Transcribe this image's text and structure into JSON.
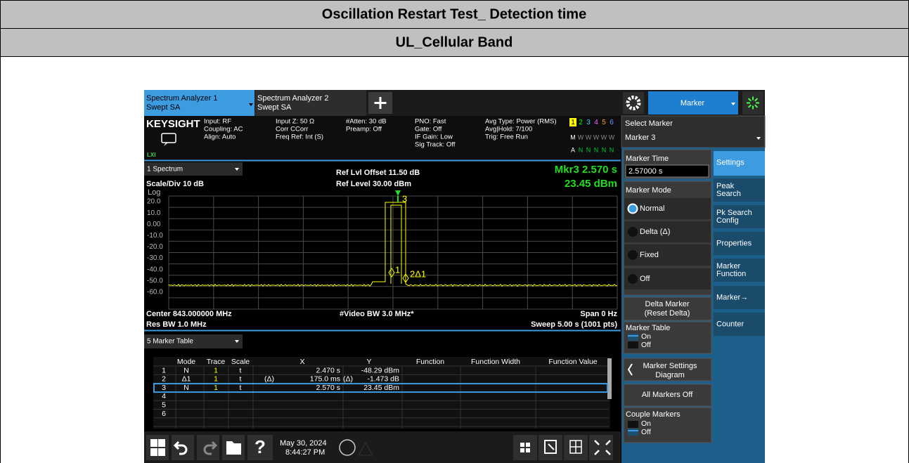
{
  "header": {
    "title": "Oscillation Restart Test_ Detection time",
    "subtitle": "UL_Cellular Band"
  },
  "screen": {
    "tabs": [
      {
        "line1": "Spectrum Analyzer 1",
        "line2": "Swept SA"
      },
      {
        "line1": "Spectrum Analyzer 2",
        "line2": "Swept SA"
      }
    ],
    "menu_title": "Marker",
    "brand": "KEYSIGHT",
    "lxi": "LXI",
    "settings": [
      [
        "Input: RF",
        "Coupling: AC",
        "Align: Auto"
      ],
      [
        "Input Z: 50 Ω",
        "Corr CCorr",
        "Freq Ref: Int (S)"
      ],
      [
        "#Atten: 30 dB",
        "Preamp: Off"
      ],
      [
        "PNO: Fast",
        "Gate: Off",
        "IF Gain: Low",
        "Sig Track: Off"
      ],
      [
        "Avg Type: Power (RMS)",
        "Avg|Hold: 7/100",
        "Trig: Free Run"
      ]
    ],
    "trace_status": {
      "numbers": [
        "1",
        "2",
        "3",
        "4",
        "5",
        "6"
      ],
      "type": [
        "M",
        "W",
        "W",
        "W",
        "W",
        "W"
      ],
      "detector": [
        "A",
        "N",
        "N",
        "N",
        "N",
        "N"
      ]
    },
    "spectrum": {
      "window": "1 Spectrum",
      "ref_offset": "Ref Lvl Offset 11.50 dB",
      "ref_level": "Ref Level 30.00 dBm",
      "scale": "Scale/Div 10 dB",
      "scale_type": "Log",
      "marker_readout": "Mkr3  2.570 s",
      "marker_value": "23.45 dBm",
      "y_labels": [
        "20.0",
        "10.0",
        "0.00",
        "-10.0",
        "-20.0",
        "-30.0",
        "-40.0",
        "-50.0",
        "-60.0"
      ],
      "markers": [
        "3",
        "1",
        "2Δ1"
      ],
      "center": "Center 843.000000 MHz",
      "video_bw": "#Video BW 3.0 MHz*",
      "span": "Span 0 Hz",
      "res_bw": "Res BW 1.0 MHz",
      "sweep": "Sweep 5.00 s (1001 pts)"
    },
    "marker_table": {
      "window": "5 Marker Table",
      "columns": [
        "Mode",
        "Trace",
        "Scale",
        "X",
        "Y",
        "Function",
        "Function Width",
        "Function Value"
      ],
      "rows": [
        {
          "index": "1",
          "mode": "N",
          "trace": "1",
          "scale": "t",
          "x": "2.470 s",
          "y": "-48.29 dBm"
        },
        {
          "index": "2",
          "mode": "Δ1",
          "trace": "1",
          "scale": "t",
          "x_ref": "(Δ)",
          "x": "175.0 ms",
          "y_ref": "(Δ)",
          "y": "-1.473 dB"
        },
        {
          "index": "3",
          "mode": "N",
          "trace": "1",
          "scale": "t",
          "x": "2.570 s",
          "y": "23.45 dBm"
        },
        {
          "index": "4"
        },
        {
          "index": "5"
        },
        {
          "index": "6"
        }
      ]
    },
    "panel": {
      "select_label": "Select Marker",
      "select_value": "Marker 3",
      "marker_time_label": "Marker Time",
      "marker_time_value": "2.57000 s",
      "marker_mode_label": "Marker Mode",
      "modes": [
        "Normal",
        "Delta (Δ)",
        "Fixed",
        "Off"
      ],
      "delta_button": [
        "Delta Marker",
        "(Reset Delta)"
      ],
      "marker_table_label": "Marker Table",
      "marker_table_options": [
        "On",
        "Off"
      ],
      "settings_button": [
        "Marker Settings",
        "Diagram"
      ],
      "all_off": "All Markers Off",
      "couple_label": "Couple Markers",
      "couple_options": [
        "On",
        "Off"
      ],
      "tabs": [
        [
          "Settings"
        ],
        [
          "Peak",
          "Search"
        ],
        [
          "Pk Search",
          "Config"
        ],
        [
          "Properties"
        ],
        [
          "Marker",
          "Function"
        ],
        [
          "Marker→"
        ],
        [
          "Counter"
        ]
      ]
    },
    "taskbar": {
      "help": "?",
      "date": "May 30, 2024",
      "time": "8:44:27 PM"
    }
  }
}
